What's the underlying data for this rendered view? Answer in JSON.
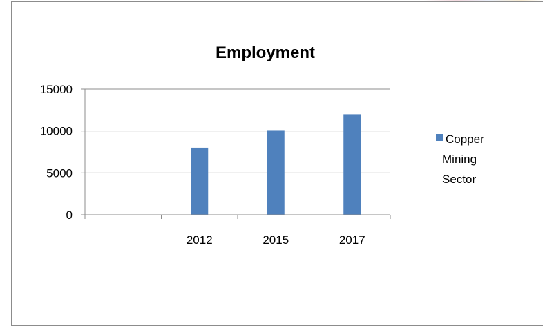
{
  "chart_data": {
    "type": "bar",
    "title": "Employment",
    "xlabel": "",
    "ylabel": "",
    "categories": [
      "",
      "2012",
      "2015",
      "2017"
    ],
    "series": [
      {
        "name": "Copper Mining Sector",
        "values": [
          null,
          8000,
          10100,
          12000
        ],
        "color": "#4f81bd"
      }
    ],
    "ylim": [
      0,
      15000
    ],
    "yticks": [
      0,
      5000,
      10000,
      15000
    ],
    "ytick_labels": [
      "0",
      "5000",
      "10000",
      "15000"
    ],
    "grid": true,
    "legend_position": "right",
    "legend_lines": [
      "Copper",
      "Mining",
      "Sector"
    ]
  }
}
